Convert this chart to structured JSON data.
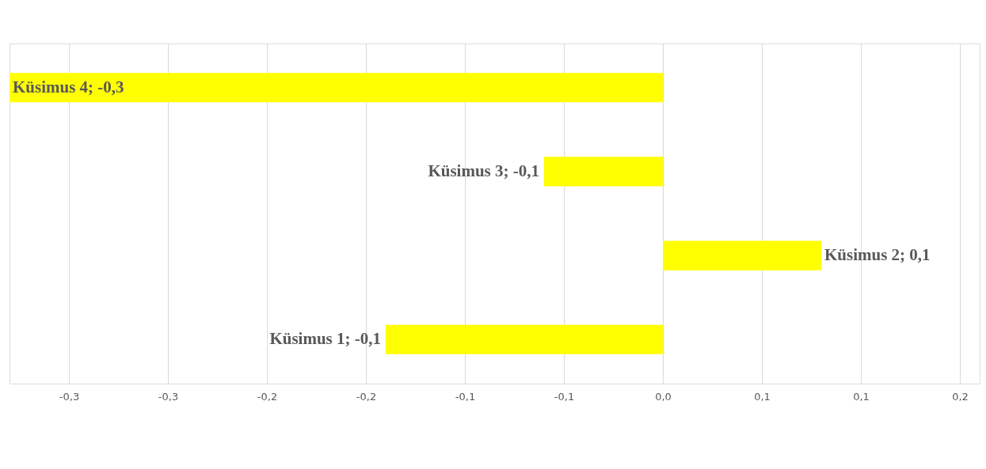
{
  "chart_data": {
    "type": "bar",
    "orientation": "horizontal",
    "categories": [
      null,
      null,
      null,
      null
    ],
    "values": [
      -0.33,
      -0.06,
      0.08,
      -0.14
    ],
    "value_labels": [
      "Küsimus 4; -0,3",
      "Küsimus 3; -0,1",
      "Küsimus 2; 0,1",
      "Küsimus 1; -0,1"
    ],
    "color": "#ffff00",
    "xlim": [
      -0.33,
      0.16
    ],
    "xticks": [
      {
        "value": -0.3,
        "label": "-0,3"
      },
      {
        "value": -0.25,
        "label": "-0,3"
      },
      {
        "value": -0.2,
        "label": "-0,2"
      },
      {
        "value": -0.15,
        "label": "-0,2"
      },
      {
        "value": -0.1,
        "label": "-0,1"
      },
      {
        "value": -0.05,
        "label": "-0,1"
      },
      {
        "value": 0,
        "label": "0,0"
      },
      {
        "value": 0.05,
        "label": "0,1"
      },
      {
        "value": 0.1,
        "label": "0,1"
      },
      {
        "value": 0.15,
        "label": "0,2"
      }
    ],
    "grid": "x",
    "tick_labels": "x"
  }
}
